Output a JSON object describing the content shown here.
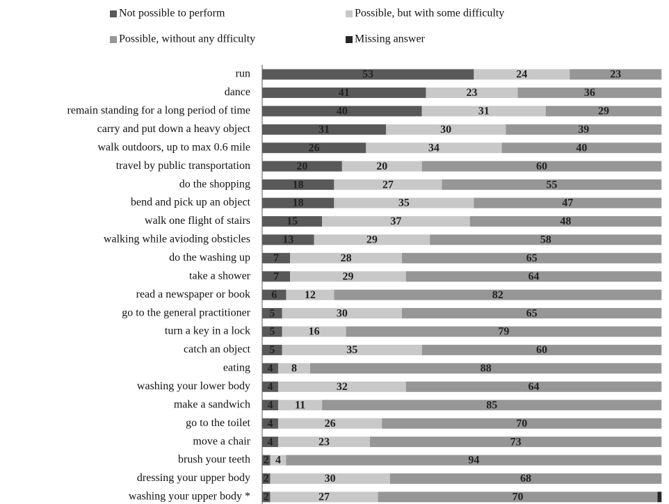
{
  "chart_data": {
    "type": "stacked-barh",
    "categories": [
      "run",
      "dance",
      "remain standing for a long period of time",
      "carry and put down a heavy object",
      "walk outdoors, up to max 0.6 mile",
      "travel by public transportation",
      "do the shopping ",
      "bend and pick up an object",
      "walk one flight of stairs",
      "walking while avioding obsticles",
      "do the washing up",
      "take a shower",
      "read a newspaper or book",
      "go to the general practitioner",
      "turn a key in a lock",
      "catch an object",
      "eating",
      "washing your lower body",
      "make a sandwich",
      "go to the toilet",
      "move a chair",
      "brush your teeth",
      "dressing your upper body",
      "washing your upper body *"
    ],
    "series": [
      {
        "name": "Not possible to perform",
        "color": "#595959",
        "labels": true,
        "values": [
          53,
          41,
          40,
          31,
          26,
          20,
          18,
          18,
          15,
          13,
          7,
          7,
          6,
          5,
          5,
          5,
          4,
          4,
          4,
          4,
          4,
          2,
          2,
          2
        ]
      },
      {
        "name": "Possible, but with some difficulty",
        "color": "#c8c8c8",
        "labels": true,
        "values": [
          24,
          23,
          31,
          30,
          34,
          20,
          27,
          35,
          37,
          29,
          28,
          29,
          12,
          30,
          16,
          35,
          8,
          32,
          11,
          26,
          23,
          4,
          30,
          27
        ]
      },
      {
        "name": "Possible, without any dfficulty",
        "color": "#969696",
        "labels": true,
        "values": [
          23,
          36,
          29,
          39,
          40,
          60,
          55,
          47,
          48,
          58,
          65,
          64,
          82,
          65,
          79,
          60,
          88,
          64,
          85,
          70,
          73,
          94,
          68,
          70
        ]
      },
      {
        "name": "Missing answer",
        "color": "#262626",
        "labels": false,
        "values": [
          0,
          0,
          0,
          0,
          0,
          0,
          0,
          0,
          0,
          0,
          0,
          0,
          0,
          0,
          0,
          0,
          0,
          0,
          0,
          0,
          0,
          0,
          0,
          1
        ]
      }
    ],
    "xlim": [
      0,
      101
    ]
  }
}
